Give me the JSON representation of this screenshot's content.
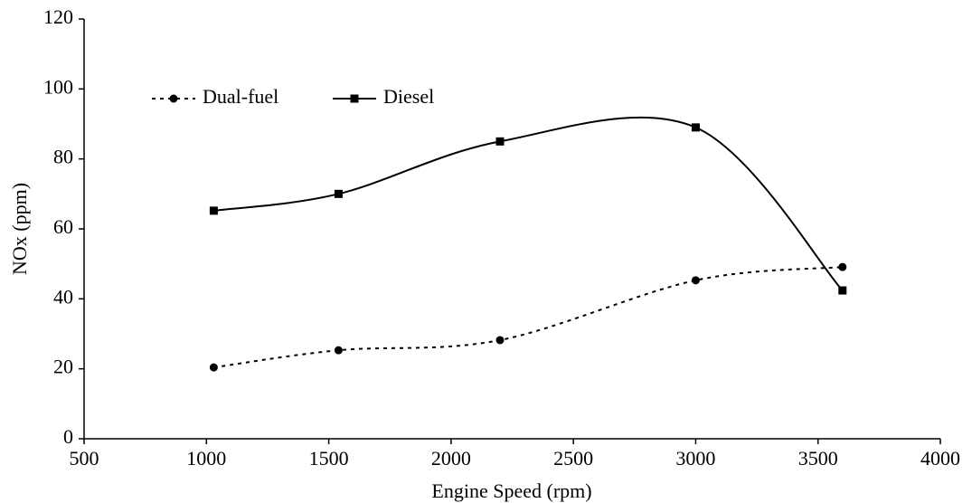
{
  "chart_data": {
    "type": "line",
    "x_label": "Engine Speed (rpm)",
    "y_label": "NOx (ppm)",
    "xlim": [
      500,
      4000
    ],
    "xticks": [
      500,
      1000,
      1500,
      2000,
      2500,
      3000,
      3500,
      4000
    ],
    "ylim": [
      0,
      120
    ],
    "yticks": [
      0,
      20,
      40,
      60,
      80,
      100,
      120
    ],
    "legend": "upper left",
    "smooth": true,
    "series": [
      {
        "name": "Dual-fuel",
        "color": "#000000",
        "line_style": "dotted",
        "marker": "circle",
        "x": [
          1030,
          1540,
          2200,
          3000,
          3600
        ],
        "values": [
          20.4,
          25.3,
          28.2,
          45.3,
          49.1
        ]
      },
      {
        "name": "Diesel",
        "color": "#000000",
        "line_style": "solid",
        "marker": "square",
        "x": [
          1030,
          1540,
          2200,
          3000,
          3600
        ],
        "values": [
          65.2,
          70,
          85,
          89,
          42.4
        ]
      }
    ]
  }
}
